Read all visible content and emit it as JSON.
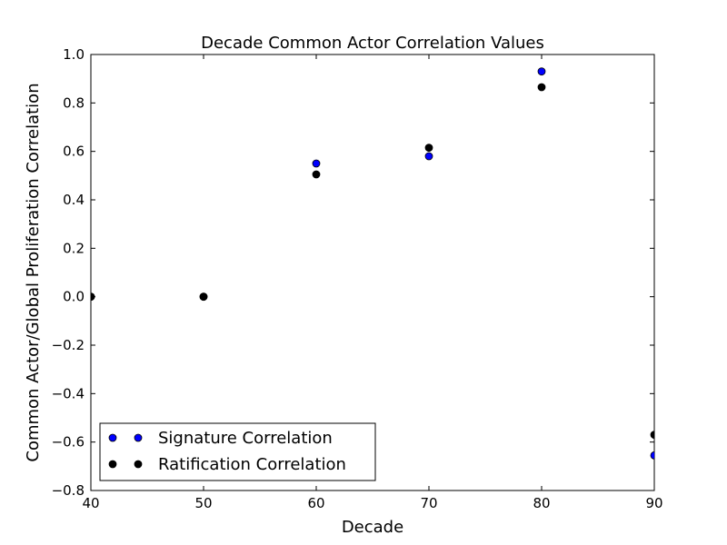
{
  "chart_data": {
    "type": "scatter",
    "title": "Decade Common Actor Correlation Values",
    "xlabel": "Decade",
    "ylabel": "Common Actor/Global Proliferation Correlation",
    "xlim": [
      40,
      90
    ],
    "ylim": [
      -0.8,
      1.0
    ],
    "xticks": [
      "40",
      "50",
      "60",
      "70",
      "80",
      "90"
    ],
    "yticks": [
      "−0.8",
      "−0.6",
      "−0.4",
      "−0.2",
      "0.0",
      "0.2",
      "0.4",
      "0.6",
      "0.8",
      "1.0"
    ],
    "grid": false,
    "legend_position": "lower-left",
    "series": [
      {
        "name": "Signature Correlation",
        "color": "#0000ff",
        "x": [
          40,
          50,
          60,
          70,
          80,
          90
        ],
        "y": [
          0.0,
          0.0,
          0.55,
          0.58,
          0.93,
          -0.655
        ]
      },
      {
        "name": "Ratification Correlation",
        "color": "#000000",
        "x": [
          40,
          50,
          60,
          70,
          80,
          90
        ],
        "y": [
          0.0,
          0.0,
          0.505,
          0.615,
          0.865,
          -0.57
        ]
      }
    ]
  }
}
